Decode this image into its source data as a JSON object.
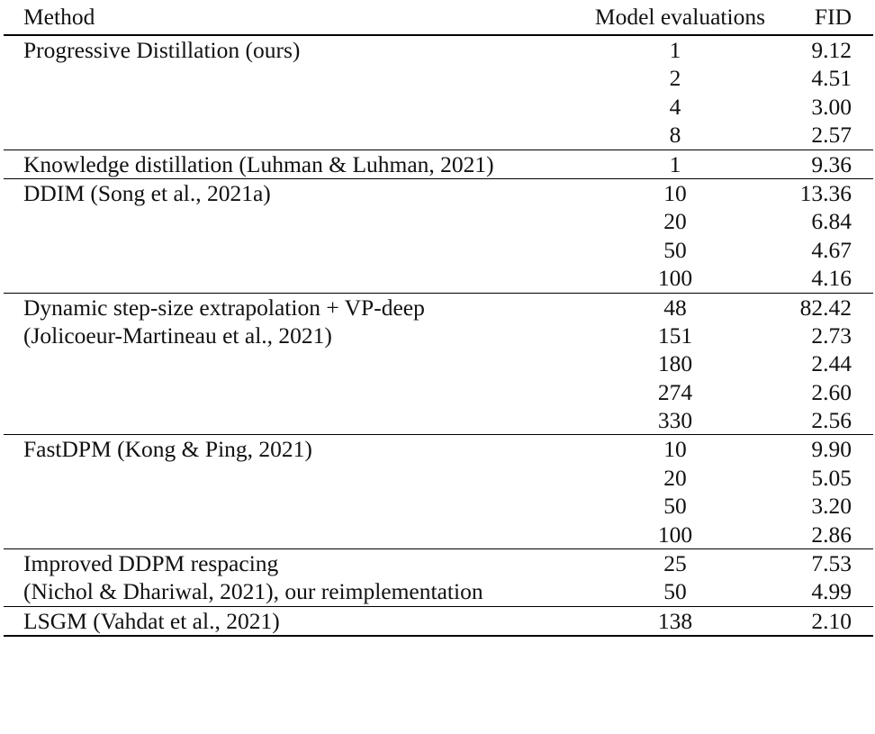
{
  "table": {
    "headers": {
      "method": "Method",
      "evals": "Model evaluations",
      "fid": "FID"
    },
    "groups": [
      {
        "method": [
          "Progressive Distillation (ours)"
        ],
        "rows": [
          {
            "evals": "1",
            "fid": "9.12"
          },
          {
            "evals": "2",
            "fid": "4.51"
          },
          {
            "evals": "4",
            "fid": "3.00"
          },
          {
            "evals": "8",
            "fid": "2.57"
          }
        ]
      },
      {
        "method": [
          "Knowledge distillation (Luhman & Luhman, 2021)"
        ],
        "rows": [
          {
            "evals": "1",
            "fid": "9.36"
          }
        ]
      },
      {
        "method": [
          "DDIM (Song et al., 2021a)"
        ],
        "rows": [
          {
            "evals": "10",
            "fid": "13.36"
          },
          {
            "evals": "20",
            "fid": "6.84"
          },
          {
            "evals": "50",
            "fid": "4.67"
          },
          {
            "evals": "100",
            "fid": "4.16"
          }
        ]
      },
      {
        "method": [
          "Dynamic step-size extrapolation + VP-deep",
          "(Jolicoeur-Martineau et al., 2021)"
        ],
        "rows": [
          {
            "evals": "48",
            "fid": "82.42"
          },
          {
            "evals": "151",
            "fid": "2.73"
          },
          {
            "evals": "180",
            "fid": "2.44"
          },
          {
            "evals": "274",
            "fid": "2.60"
          },
          {
            "evals": "330",
            "fid": "2.56"
          }
        ]
      },
      {
        "method": [
          "FastDPM (Kong & Ping, 2021)"
        ],
        "rows": [
          {
            "evals": "10",
            "fid": "9.90"
          },
          {
            "evals": "20",
            "fid": "5.05"
          },
          {
            "evals": "50",
            "fid": "3.20"
          },
          {
            "evals": "100",
            "fid": "2.86"
          }
        ]
      },
      {
        "method": [
          "Improved DDPM respacing",
          "(Nichol & Dhariwal, 2021), our reimplementation"
        ],
        "rows": [
          {
            "evals": "25",
            "fid": "7.53"
          },
          {
            "evals": "50",
            "fid": "4.99"
          }
        ]
      },
      {
        "method": [
          "LSGM (Vahdat et al., 2021)"
        ],
        "rows": [
          {
            "evals": "138",
            "fid": "2.10"
          }
        ]
      }
    ]
  }
}
